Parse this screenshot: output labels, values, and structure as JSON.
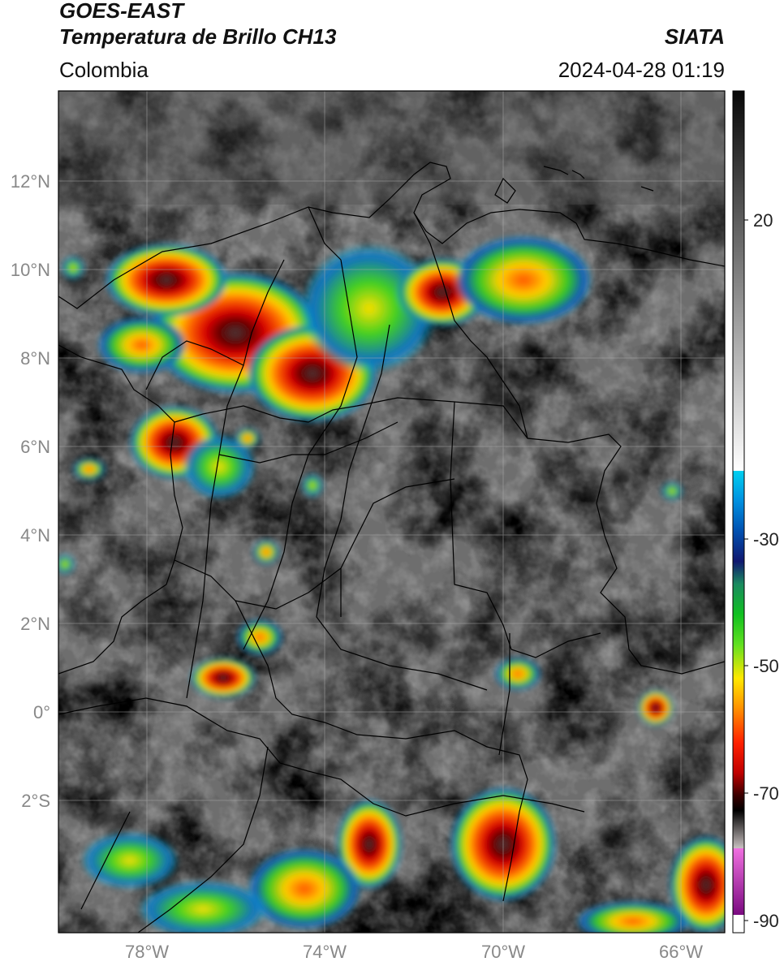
{
  "title": {
    "line1": "GOES-EAST",
    "line2": "Temperatura de Brillo CH13",
    "region": "Colombia",
    "brand": "SIATA",
    "datetime": "2024-04-28 01:19"
  },
  "map": {
    "lat_ticks": [
      "12°N",
      "10°N",
      "8°N",
      "6°N",
      "4°N",
      "2°N",
      "0°",
      "2°S"
    ],
    "lon_ticks": [
      "78°W",
      "74°W",
      "70°W",
      "66°W"
    ]
  },
  "colorbar": {
    "ticks": [
      "20",
      "-30",
      "-50",
      "-70",
      "-90"
    ],
    "colors": {
      "gray_top": "#0a0a0a",
      "gray_bottom": "#ffffff",
      "cyan": "#00c8f0",
      "navy": "#0a1a80",
      "green": "#22c822",
      "yellow": "#ffd800",
      "orange": "#ff8000",
      "red": "#e00000",
      "darkred": "#500000",
      "magenta": "#d040c0",
      "purple": "#800080"
    }
  }
}
